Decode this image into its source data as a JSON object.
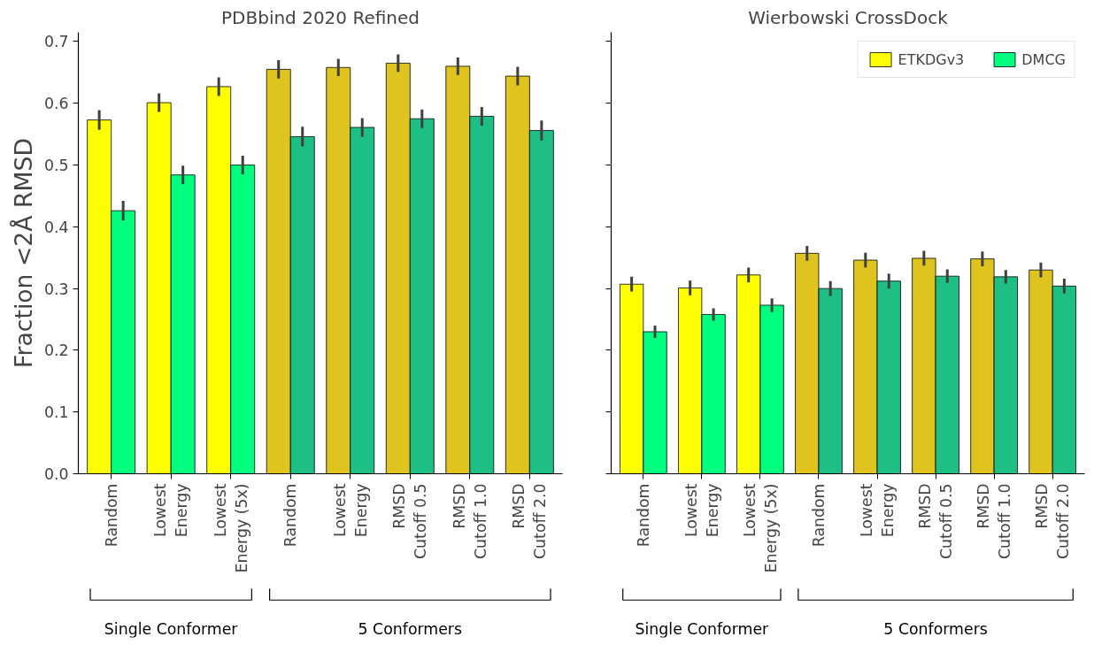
{
  "chart_data": [
    {
      "type": "bar",
      "title": "PDBbind 2020 Refined",
      "ylabel": "Fraction <2Å RMSD",
      "categories": [
        "Random",
        "Lowest\nEnergy",
        "Lowest\nEnergy (5x)",
        "Random",
        "Lowest\nEnergy",
        "RMSD\nCutoff 0.5",
        "RMSD\nCutoff 1.0",
        "RMSD\nCutoff 2.0"
      ],
      "series": [
        {
          "colors": [
            "#ffff00",
            "#ffff00",
            "#ffff00",
            "#dfc41f",
            "#dfc41f",
            "#dfc41f",
            "#dfc41f",
            "#dfc41f"
          ],
          "values": [
            0.573,
            0.601,
            0.627,
            0.655,
            0.658,
            0.665,
            0.66,
            0.644
          ],
          "errors": [
            0.016,
            0.015,
            0.015,
            0.015,
            0.014,
            0.014,
            0.014,
            0.015
          ]
        },
        {
          "colors": [
            "#00ff7f",
            "#00ff7f",
            "#00ff7f",
            "#1dbf85",
            "#1dbf85",
            "#1dbf85",
            "#1dbf85",
            "#1dbf85"
          ],
          "values": [
            0.426,
            0.484,
            0.5,
            0.546,
            0.561,
            0.575,
            0.579,
            0.556
          ],
          "errors": [
            0.016,
            0.015,
            0.015,
            0.016,
            0.015,
            0.015,
            0.015,
            0.016
          ]
        }
      ],
      "ylim": [
        0,
        0.715
      ],
      "yticks": [
        {
          "value": 0,
          "label": "0.0"
        },
        0.1,
        0.2,
        0.3,
        0.4,
        0.5,
        0.6,
        0.7
      ],
      "grid": false,
      "legend": false,
      "annotations": [
        "Single Conformer",
        "5 Conformers"
      ]
    },
    {
      "type": "bar",
      "title": "Wierbowski CrossDock",
      "categories": [
        "Random",
        "Lowest\nEnergy",
        "Lowest\nEnergy (5x)",
        "Random",
        "Lowest\nEnergy",
        "RMSD\nCutoff 0.5",
        "RMSD\nCutoff 1.0",
        "RMSD\nCutoff 2.0"
      ],
      "series": [
        {
          "name": "ETKDGv3",
          "colors": [
            "#ffff00",
            "#ffff00",
            "#ffff00",
            "#dfc41f",
            "#dfc41f",
            "#dfc41f",
            "#dfc41f",
            "#dfc41f"
          ],
          "values": [
            0.307,
            0.301,
            0.322,
            0.357,
            0.346,
            0.349,
            0.348,
            0.33
          ],
          "errors": [
            0.012,
            0.012,
            0.012,
            0.012,
            0.012,
            0.012,
            0.012,
            0.012
          ]
        },
        {
          "name": "DMCG",
          "colors": [
            "#00ff7f",
            "#00ff7f",
            "#00ff7f",
            "#1dbf85",
            "#1dbf85",
            "#1dbf85",
            "#1dbf85",
            "#1dbf85"
          ],
          "values": [
            0.23,
            0.258,
            0.273,
            0.3,
            0.312,
            0.32,
            0.319,
            0.304
          ],
          "errors": [
            0.01,
            0.01,
            0.011,
            0.012,
            0.012,
            0.011,
            0.011,
            0.012
          ]
        }
      ],
      "ylim": [
        0,
        0.715
      ],
      "yticks": [
        0,
        0.1,
        0.2,
        0.3,
        0.4,
        0.5,
        0.6,
        0.7
      ],
      "grid": false,
      "legend": "top right",
      "tick_labels": "x",
      "annotations": [
        "Single Conformer",
        "5 Conformers"
      ]
    }
  ]
}
